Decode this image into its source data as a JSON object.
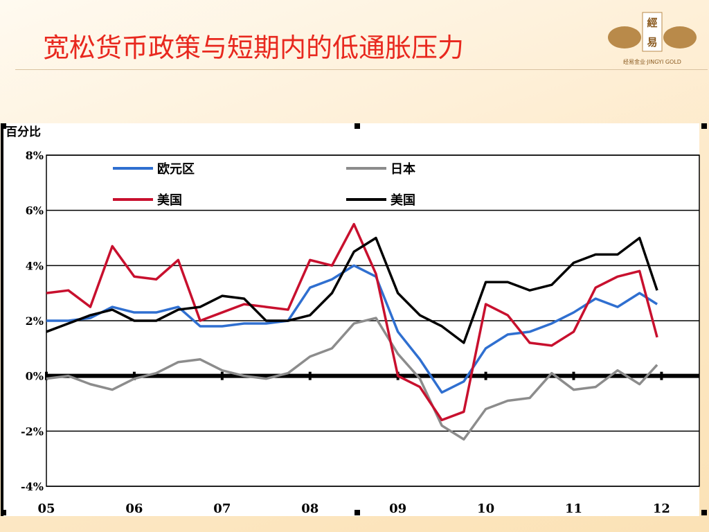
{
  "slide": {
    "title": "宽松货币政策与短期内的低通胀压力",
    "logo": {
      "mark": [
        "經",
        "易"
      ],
      "caption": "经易金业·JINGYI GOLD"
    }
  },
  "chart_data": {
    "type": "line",
    "y_label": "百分比",
    "x": [
      2005,
      2005.25,
      2005.5,
      2005.75,
      2006,
      2006.25,
      2006.5,
      2006.75,
      2007,
      2007.25,
      2007.5,
      2007.75,
      2008,
      2008.25,
      2008.5,
      2008.75,
      2009,
      2009.25,
      2009.5,
      2009.75,
      2010,
      2010.25,
      2010.5,
      2010.75,
      2011,
      2011.25,
      2011.5,
      2011.75,
      2011.95
    ],
    "series": [
      {
        "name": "欧元区",
        "color": "#2f6fd0",
        "values": [
          2.0,
          2.0,
          2.1,
          2.5,
          2.3,
          2.3,
          2.5,
          1.8,
          1.8,
          1.9,
          1.9,
          2.0,
          3.2,
          3.5,
          4.0,
          3.6,
          1.6,
          0.6,
          -0.6,
          -0.2,
          1.0,
          1.5,
          1.6,
          1.9,
          2.3,
          2.8,
          2.5,
          3.0,
          2.6
        ]
      },
      {
        "name": "日本",
        "color": "#8c8c8c",
        "values": [
          -0.1,
          0.0,
          -0.3,
          -0.5,
          -0.1,
          0.1,
          0.5,
          0.6,
          0.2,
          0.0,
          -0.1,
          0.1,
          0.7,
          1.0,
          1.9,
          2.1,
          0.8,
          -0.1,
          -1.8,
          -2.3,
          -1.2,
          -0.9,
          -0.8,
          0.1,
          -0.5,
          -0.4,
          0.2,
          -0.3,
          0.4
        ]
      },
      {
        "name": "美国",
        "color": "#c8102e",
        "values": [
          3.0,
          3.1,
          2.5,
          4.7,
          3.6,
          3.5,
          4.2,
          2.0,
          2.3,
          2.6,
          2.5,
          2.4,
          4.2,
          4.0,
          5.5,
          3.7,
          0.0,
          -0.4,
          -1.6,
          -1.3,
          2.6,
          2.2,
          1.2,
          1.1,
          1.6,
          3.2,
          3.6,
          3.8,
          1.4
        ]
      },
      {
        "name": "美国",
        "color": "#000000",
        "values": [
          1.6,
          1.9,
          2.2,
          2.4,
          2.0,
          2.0,
          2.4,
          2.5,
          2.9,
          2.8,
          2.0,
          2.0,
          2.2,
          3.0,
          4.5,
          5.0,
          3.0,
          2.2,
          1.8,
          1.2,
          3.4,
          3.4,
          3.1,
          3.3,
          4.1,
          4.4,
          4.4,
          5.0,
          3.1
        ]
      }
    ],
    "xlim": [
      2005,
      2012.43
    ],
    "xticks": [
      {
        "value": 2005,
        "label": "05"
      },
      {
        "value": 2006,
        "label": "06"
      },
      {
        "value": 2007,
        "label": "07"
      },
      {
        "value": 2008,
        "label": "08"
      },
      {
        "value": 2009,
        "label": "09"
      },
      {
        "value": 2010,
        "label": "10"
      },
      {
        "value": 2011,
        "label": "11"
      },
      {
        "value": 2012,
        "label": "12"
      }
    ],
    "ylim": [
      -4,
      8
    ],
    "yticks": [
      {
        "value": -4,
        "label": "-4%"
      },
      {
        "value": -2,
        "label": "-2%"
      },
      {
        "value": 0,
        "label": "0%"
      },
      {
        "value": 2,
        "label": "2%"
      },
      {
        "value": 4,
        "label": "4%"
      },
      {
        "value": 6,
        "label": "6%"
      },
      {
        "value": 8,
        "label": "8%"
      }
    ],
    "grid": true
  }
}
